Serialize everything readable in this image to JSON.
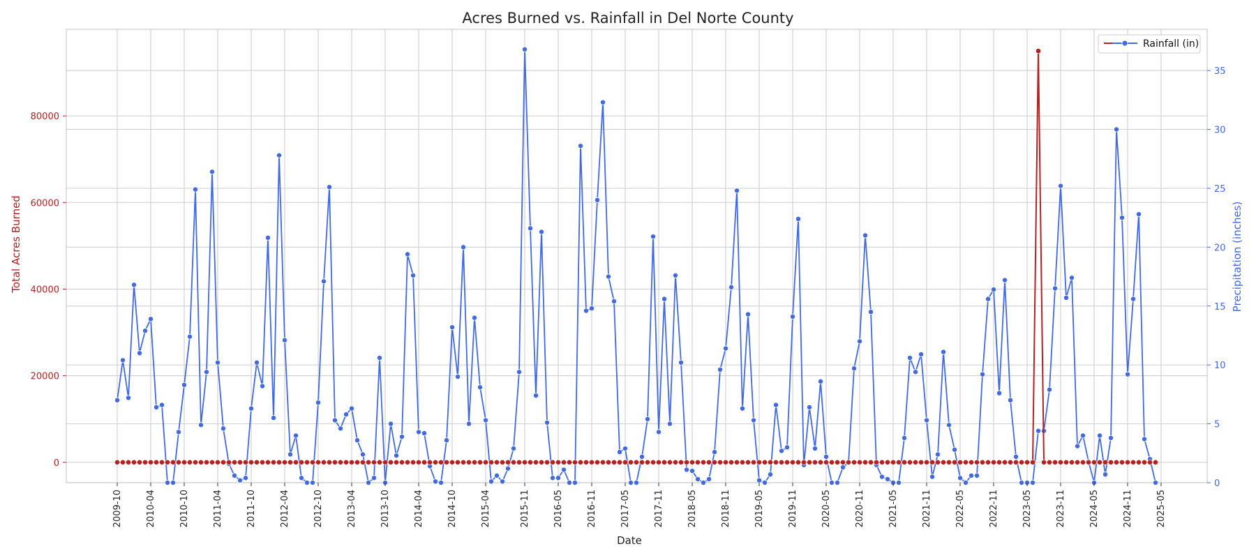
{
  "chart_data": {
    "type": "line",
    "title": "Acres Burned vs. Rainfall in Del Norte County",
    "xlabel": "Date",
    "ylabel_left": "Total Acres Burned",
    "ylabel_right": "Precipitation (inches)",
    "x_tick_labels": [
      "2009-10",
      "2010-04",
      "2010-10",
      "2011-04",
      "2011-10",
      "2012-04",
      "2012-10",
      "2013-04",
      "2013-10",
      "2014-04",
      "2014-10",
      "2015-04",
      "2015-11",
      "2016-05",
      "2016-11",
      "2017-05",
      "2017-11",
      "2018-05",
      "2018-11",
      "2019-05",
      "2019-11",
      "2020-05",
      "2020-11",
      "2021-05",
      "2021-11",
      "2022-05",
      "2022-11",
      "2023-05",
      "2023-11",
      "2024-05",
      "2024-11",
      "2025-05"
    ],
    "ylim_left": [
      -4700,
      100000
    ],
    "yticks_left": [
      0,
      20000,
      40000,
      60000,
      80000
    ],
    "ylim_right": [
      0,
      38.5
    ],
    "yticks_right": [
      0,
      5,
      10,
      15,
      20,
      25,
      30,
      35
    ],
    "grid": true,
    "legend_position": "top-right",
    "colors": {
      "acres": "#b22222",
      "rainfall": "#4169e1",
      "grid": "#d3d3d3"
    },
    "series": [
      {
        "name": "",
        "axis": "left",
        "color": "#b22222",
        "peak": {
          "month_index": 165,
          "value": 95000
        },
        "baseline_value": 0
      },
      {
        "name": "Rainfall (in)",
        "axis": "right",
        "color": "#4169e1",
        "values": [
          7.0,
          10.4,
          7.2,
          16.8,
          11.0,
          12.9,
          13.9,
          6.4,
          6.6,
          0.0,
          0.0,
          4.3,
          8.3,
          12.4,
          24.9,
          4.9,
          9.4,
          26.4,
          10.2,
          4.6,
          1.6,
          0.6,
          0.2,
          0.4,
          6.3,
          10.2,
          8.2,
          20.8,
          5.5,
          27.8,
          12.1,
          2.4,
          4.0,
          0.4,
          0.0,
          0.0,
          6.8,
          17.1,
          25.1,
          5.3,
          4.6,
          5.8,
          6.3,
          3.6,
          2.4,
          0.0,
          0.4,
          10.6,
          0.0,
          5.0,
          2.3,
          3.9,
          19.4,
          17.6,
          4.3,
          4.2,
          1.4,
          0.1,
          0.0,
          3.6,
          13.2,
          9.0,
          20.0,
          5.0,
          14.0,
          8.1,
          5.3,
          0.1,
          0.6,
          0.1,
          1.2,
          2.9,
          9.4,
          36.8,
          21.6,
          7.4,
          21.3,
          5.1,
          0.4,
          0.4,
          1.1,
          0.0,
          0.0,
          28.6,
          14.6,
          14.8,
          24.0,
          32.3,
          17.5,
          15.4,
          2.6,
          2.9,
          0.0,
          0.0,
          2.2,
          5.4,
          20.9,
          4.3,
          15.6,
          5.0,
          17.6,
          10.2,
          1.1,
          1.0,
          0.3,
          0.0,
          0.3,
          2.6,
          9.6,
          11.4,
          16.6,
          24.8,
          6.3,
          14.3,
          5.3,
          0.2,
          0.0,
          0.7,
          6.6,
          2.7,
          3.0,
          14.1,
          22.4,
          1.5,
          6.4,
          2.9,
          8.6,
          2.2,
          0.0,
          0.0,
          1.3,
          1.7,
          9.7,
          12.0,
          21.0,
          14.5,
          1.5,
          0.5,
          0.3,
          0.0,
          0.0,
          3.8,
          10.6,
          9.4,
          10.9,
          5.3,
          0.5,
          2.4,
          11.1,
          4.9,
          2.8,
          0.4,
          0.0,
          0.6,
          0.6,
          9.2,
          15.6,
          16.4,
          7.6,
          17.2,
          7.0,
          2.2,
          0.0,
          0.0,
          0.0,
          4.4,
          4.4,
          7.9,
          16.5,
          25.2,
          15.7,
          17.4,
          3.1,
          4.0,
          1.8,
          0.0,
          4.0,
          0.7,
          3.8,
          30.0,
          22.5,
          9.2,
          15.6,
          22.8,
          3.7,
          2.0,
          0.0
        ]
      }
    ]
  }
}
